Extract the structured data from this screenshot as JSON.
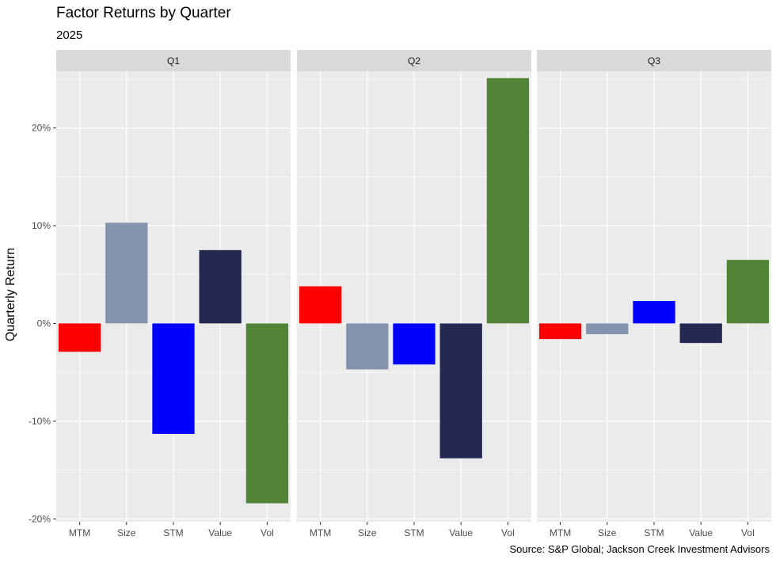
{
  "chart_data": {
    "type": "bar",
    "title": "Factor Returns by Quarter",
    "subtitle": "2025",
    "ylabel": "Quarterly Return",
    "xlabel": "",
    "caption": "Source: S&P Global; Jackson Creek Investment Advisors",
    "ylim": [
      -20.3,
      25.8
    ],
    "yticks": [
      -20,
      -10,
      0,
      10,
      20
    ],
    "ytick_labels": [
      "-20%",
      "-10%",
      "0%",
      "10%",
      "20%"
    ],
    "grid": true,
    "legend": "none",
    "categories": [
      "MTM",
      "Size",
      "STM",
      "Value",
      "Vol"
    ],
    "colors": [
      "#ff0000",
      "#8393ad",
      "#0000ff",
      "#252850",
      "#518436"
    ],
    "panel_bg": "#ebebeb",
    "strip_bg": "#d9d9d9",
    "panels": [
      {
        "name": "Q1",
        "values": [
          -2.9,
          10.3,
          -11.3,
          7.5,
          -18.4
        ]
      },
      {
        "name": "Q2",
        "values": [
          3.8,
          -4.7,
          -4.2,
          -13.8,
          25.1
        ]
      },
      {
        "name": "Q3",
        "values": [
          -1.6,
          -1.1,
          2.3,
          -2.0,
          6.5
        ]
      }
    ]
  }
}
